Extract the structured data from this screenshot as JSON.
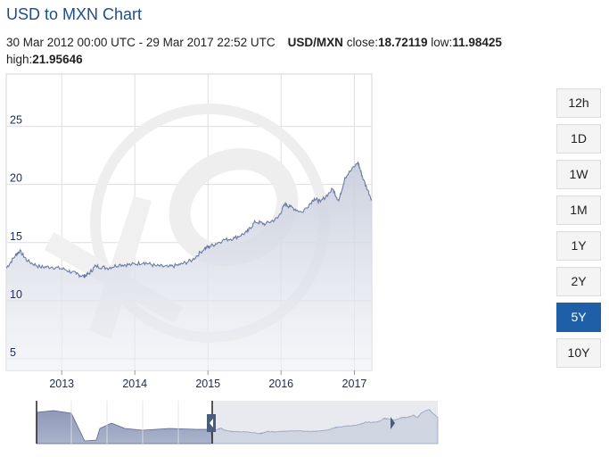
{
  "header": {
    "title": "USD to MXN Chart"
  },
  "info": {
    "range": "30 Mar 2012 00:00 UTC - 29 Mar 2017 22:52 UTC",
    "pair": "USD/MXN",
    "close_label": "close:",
    "close_value": "18.72119",
    "low_label": "low:",
    "low_value": "11.98425",
    "high_label": "high:",
    "high_value": "21.95646"
  },
  "timeframes": {
    "items": [
      "12h",
      "1D",
      "1W",
      "1M",
      "1Y",
      "2Y",
      "5Y",
      "10Y"
    ],
    "active": "5Y"
  },
  "colors": {
    "active_button": "#1e5fa8",
    "series_line": "#6b7ba3",
    "axis_text": "#1a2b5c",
    "title": "#1f4d8c"
  },
  "chart_data": {
    "type": "area",
    "yticks": [
      5,
      10,
      15,
      20,
      25
    ],
    "ylim": [
      4,
      29.5
    ],
    "xticks": [
      "2013",
      "2014",
      "2015",
      "2016",
      "2017"
    ],
    "xlim": [
      "2012-03-30",
      "2017-03-29"
    ],
    "grid": true,
    "watermark": "xe",
    "x": [
      "2012-03-30",
      "2012-05-15",
      "2012-06-05",
      "2012-07-15",
      "2012-09-15",
      "2012-11-15",
      "2013-01-15",
      "2013-03-15",
      "2013-04-20",
      "2013-05-15",
      "2013-06-20",
      "2013-08-15",
      "2013-10-15",
      "2013-12-15",
      "2014-02-15",
      "2014-04-15",
      "2014-06-15",
      "2014-08-15",
      "2014-10-15",
      "2014-12-15",
      "2015-01-15",
      "2015-03-15",
      "2015-05-15",
      "2015-07-15",
      "2015-08-25",
      "2015-10-15",
      "2015-12-15",
      "2016-01-20",
      "2016-02-15",
      "2016-04-15",
      "2016-06-15",
      "2016-07-15",
      "2016-09-15",
      "2016-10-15",
      "2016-11-15",
      "2017-01-19",
      "2017-02-15",
      "2017-03-29"
    ],
    "y": [
      12.8,
      13.9,
      14.3,
      13.4,
      12.9,
      12.9,
      12.7,
      12.3,
      12.1,
      12.3,
      13.0,
      12.8,
      13.1,
      13.1,
      13.3,
      13.0,
      12.9,
      13.1,
      13.5,
      14.5,
      14.7,
      15.2,
      15.4,
      15.9,
      16.8,
      16.6,
      17.1,
      18.3,
      18.1,
      17.6,
      18.8,
      18.5,
      19.6,
      18.6,
      20.6,
      21.9,
      20.4,
      18.7
    ]
  },
  "navigator": {
    "labels": []
  }
}
